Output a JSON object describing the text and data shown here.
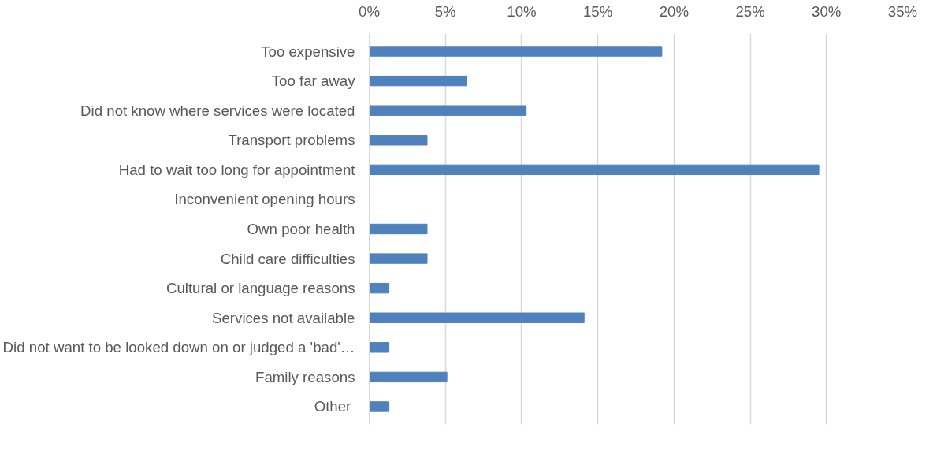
{
  "chart_data": {
    "type": "bar",
    "orientation": "horizontal",
    "categories": [
      "Too expensive",
      "Too far away",
      "Did not know where services were located",
      "Transport problems",
      "Had to wait too long for appointment",
      "Inconvenient opening hours",
      "Own poor health",
      "Child care difficulties",
      "Cultural or language reasons",
      "Services not available",
      "Did not want to be looked down on or judged a 'bad'…",
      "Family reasons",
      "Other "
    ],
    "values": [
      19.2,
      6.4,
      10.3,
      3.8,
      29.5,
      0,
      3.8,
      3.8,
      1.3,
      14.1,
      1.3,
      5.1,
      1.3
    ],
    "color": "#4f81bd",
    "xlim": [
      0,
      35
    ],
    "xticks": [
      {
        "value": 0,
        "label": "0%"
      },
      {
        "value": 5,
        "label": "5%"
      },
      {
        "value": 10,
        "label": "10%"
      },
      {
        "value": 15,
        "label": "15%"
      },
      {
        "value": 20,
        "label": "20%"
      },
      {
        "value": 25,
        "label": "25%"
      },
      {
        "value": 30,
        "label": "30%"
      },
      {
        "value": 35,
        "label": "35%"
      }
    ],
    "grid": "x"
  }
}
